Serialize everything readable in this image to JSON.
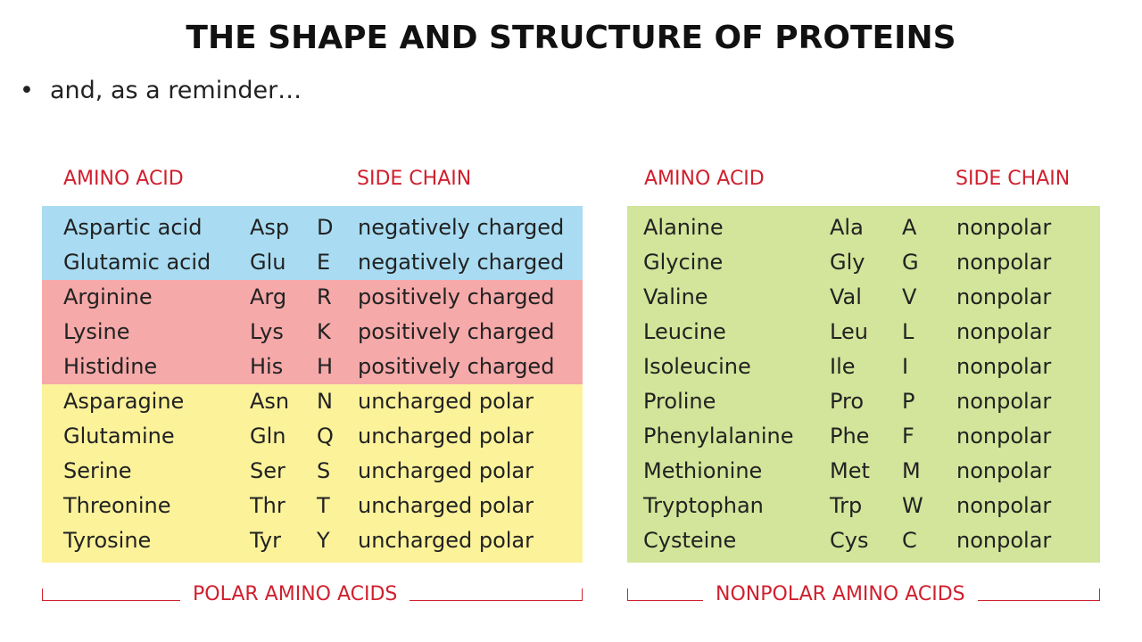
{
  "title": "THE SHAPE AND STRUCTURE OF PROTEINS",
  "bullet": {
    "symbol": "•",
    "text": "and, as a reminder…"
  },
  "polar": {
    "header_amino": "AMINO ACID",
    "header_side": "SIDE CHAIN",
    "footer": "POLAR AMINO ACIDS",
    "colors": {
      "negative": "#a9dcf2",
      "positive": "#f6a9a9",
      "uncharged": "#fbf29a"
    },
    "rows": [
      {
        "name": "Aspartic acid",
        "abbr": "Asp",
        "code": "D",
        "side": "negatively charged",
        "group": "negative"
      },
      {
        "name": "Glutamic acid",
        "abbr": "Glu",
        "code": "E",
        "side": "negatively charged",
        "group": "negative"
      },
      {
        "name": "Arginine",
        "abbr": "Arg",
        "code": "R",
        "side": "positively charged",
        "group": "positive"
      },
      {
        "name": "Lysine",
        "abbr": "Lys",
        "code": "K",
        "side": "positively charged",
        "group": "positive"
      },
      {
        "name": "Histidine",
        "abbr": "His",
        "code": "H",
        "side": "positively charged",
        "group": "positive"
      },
      {
        "name": "Asparagine",
        "abbr": "Asn",
        "code": "N",
        "side": "uncharged polar",
        "group": "uncharged"
      },
      {
        "name": "Glutamine",
        "abbr": "Gln",
        "code": "Q",
        "side": "uncharged polar",
        "group": "uncharged"
      },
      {
        "name": "Serine",
        "abbr": "Ser",
        "code": "S",
        "side": "uncharged polar",
        "group": "uncharged"
      },
      {
        "name": "Threonine",
        "abbr": "Thr",
        "code": "T",
        "side": "uncharged polar",
        "group": "uncharged"
      },
      {
        "name": "Tyrosine",
        "abbr": "Tyr",
        "code": "Y",
        "side": "uncharged polar",
        "group": "uncharged"
      }
    ]
  },
  "nonpolar": {
    "header_amino": "AMINO ACID",
    "header_side": "SIDE CHAIN",
    "footer": "NONPOLAR AMINO ACIDS",
    "color": "#d3e59a",
    "rows": [
      {
        "name": "Alanine",
        "abbr": "Ala",
        "code": "A",
        "side": "nonpolar"
      },
      {
        "name": "Glycine",
        "abbr": "Gly",
        "code": "G",
        "side": "nonpolar"
      },
      {
        "name": "Valine",
        "abbr": "Val",
        "code": "V",
        "side": "nonpolar"
      },
      {
        "name": "Leucine",
        "abbr": "Leu",
        "code": "L",
        "side": "nonpolar"
      },
      {
        "name": "Isoleucine",
        "abbr": "Ile",
        "code": "I",
        "side": "nonpolar"
      },
      {
        "name": "Proline",
        "abbr": "Pro",
        "code": "P",
        "side": "nonpolar"
      },
      {
        "name": "Phenylalanine",
        "abbr": "Phe",
        "code": "F",
        "side": "nonpolar"
      },
      {
        "name": "Methionine",
        "abbr": "Met",
        "code": "M",
        "side": "nonpolar"
      },
      {
        "name": "Tryptophan",
        "abbr": "Trp",
        "code": "W",
        "side": "nonpolar"
      },
      {
        "name": "Cysteine",
        "abbr": "Cys",
        "code": "C",
        "side": "nonpolar"
      }
    ]
  },
  "accent_color": "#d0202e"
}
